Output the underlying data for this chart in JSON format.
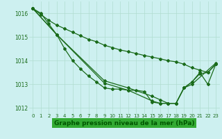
{
  "x_full": [
    0,
    1,
    2,
    3,
    4,
    5,
    6,
    7,
    8,
    9,
    10,
    11,
    12,
    13,
    14,
    15,
    16,
    17,
    18,
    19,
    20,
    21,
    22,
    23
  ],
  "series1_x": [
    0,
    1,
    2,
    3,
    4,
    5,
    6,
    7,
    8,
    9,
    10,
    11,
    12,
    13,
    14,
    15,
    16,
    17,
    18,
    19,
    20,
    21,
    22,
    23
  ],
  "series1_y": [
    1016.2,
    1016.0,
    1015.55,
    1015.1,
    1014.5,
    1014.0,
    1013.65,
    1013.35,
    1013.1,
    1012.85,
    1012.8,
    1012.8,
    1012.75,
    1012.75,
    1012.7,
    1012.25,
    1012.2,
    1012.2,
    1012.2,
    1012.85,
    1013.1,
    1013.5,
    1013.0,
    1013.85
  ],
  "series2_x": [
    0,
    1,
    2,
    3,
    4,
    5,
    6,
    7,
    8,
    9,
    10,
    11,
    12,
    13,
    14,
    15,
    16,
    17,
    18,
    19,
    20,
    21,
    22,
    23
  ],
  "series2_y": [
    1016.2,
    1015.95,
    1015.7,
    1015.5,
    1015.35,
    1015.2,
    1015.05,
    1014.9,
    1014.8,
    1014.65,
    1014.55,
    1014.45,
    1014.38,
    1014.3,
    1014.22,
    1014.15,
    1014.08,
    1014.0,
    1013.95,
    1013.85,
    1013.7,
    1013.6,
    1013.5,
    1013.85
  ],
  "series3_x": [
    0,
    3,
    9,
    12,
    15,
    16,
    17,
    18,
    19,
    20,
    21,
    22,
    23
  ],
  "series3_y": [
    1016.2,
    1015.1,
    1013.15,
    1012.85,
    1012.5,
    1012.35,
    1012.2,
    1012.2,
    1012.85,
    1013.1,
    1013.45,
    1013.5,
    1013.85
  ],
  "series4_x": [
    0,
    3,
    9,
    12,
    15,
    16,
    17,
    18,
    19,
    20,
    23
  ],
  "series4_y": [
    1016.2,
    1015.1,
    1013.05,
    1012.75,
    1012.3,
    1012.2,
    1012.2,
    1012.2,
    1012.85,
    1013.0,
    1013.9
  ],
  "ylim": [
    1011.75,
    1016.5
  ],
  "xlim": [
    -0.5,
    23.5
  ],
  "yticks": [
    1012,
    1013,
    1014,
    1015,
    1016
  ],
  "xticks": [
    0,
    1,
    2,
    3,
    4,
    5,
    6,
    7,
    8,
    9,
    10,
    11,
    12,
    13,
    14,
    15,
    16,
    17,
    18,
    19,
    20,
    21,
    22,
    23
  ],
  "line_color": "#1a6b1a",
  "bg_color": "#cdf0f0",
  "grid_color": "#b0ddd0",
  "xlabel": "Graphe pression niveau de la mer (hPa)",
  "xlabel_color": "#005500",
  "xlabel_bg": "#33aa33",
  "ytick_fontsize": 5.5,
  "xtick_fontsize": 5.0,
  "xlabel_fontsize": 6.5
}
